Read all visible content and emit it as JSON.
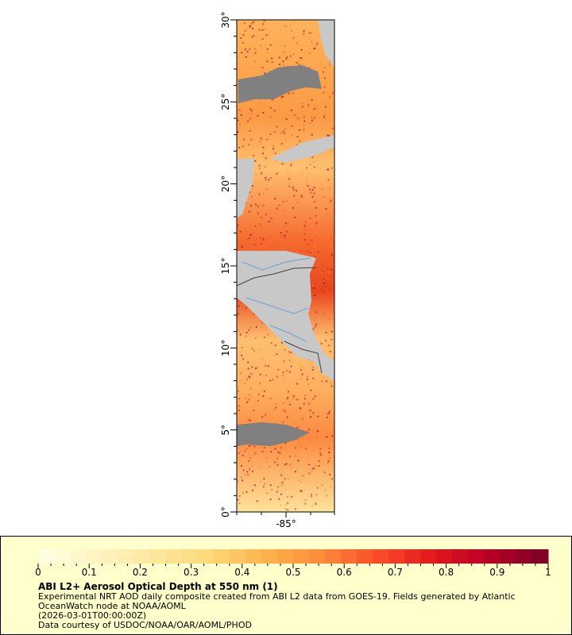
{
  "map": {
    "lat_range": [
      0,
      30
    ],
    "lon_center_label": "-85°",
    "y_tick_labels": [
      "0°",
      "5°",
      "10°",
      "15°",
      "20°",
      "25°",
      "30°"
    ],
    "colors": {
      "land": "#c8c8c8",
      "no_data": "#808080",
      "rivers": "#6a9fd8",
      "borders": "#404040"
    }
  },
  "legend": {
    "colorbar_range": [
      0,
      1
    ],
    "tick_labels": [
      "0",
      "0.1",
      "0.2",
      "0.3",
      "0.4",
      "0.5",
      "0.6",
      "0.7",
      "0.8",
      "0.9",
      "1"
    ],
    "colormap": [
      "#ffffe0",
      "#fff3c0",
      "#fee79c",
      "#fed976",
      "#feb24c",
      "#fd8d3c",
      "#fc4e2a",
      "#e31a1c",
      "#bd0026",
      "#800026"
    ],
    "title": "ABI L2+ Aerosol Optical Depth at 550 nm (1)",
    "description_line1": "Experimental NRT AOD daily composite created from ABI L2 data from GOES-19. Fields generated by Atlantic",
    "description_line2": "OceanWatch node at NOAA/AOML",
    "time": "(2026-03-01T00:00:00Z)",
    "credit": "Data courtesy of USDOC/NOAA/OAR/AOML/PHOD"
  }
}
